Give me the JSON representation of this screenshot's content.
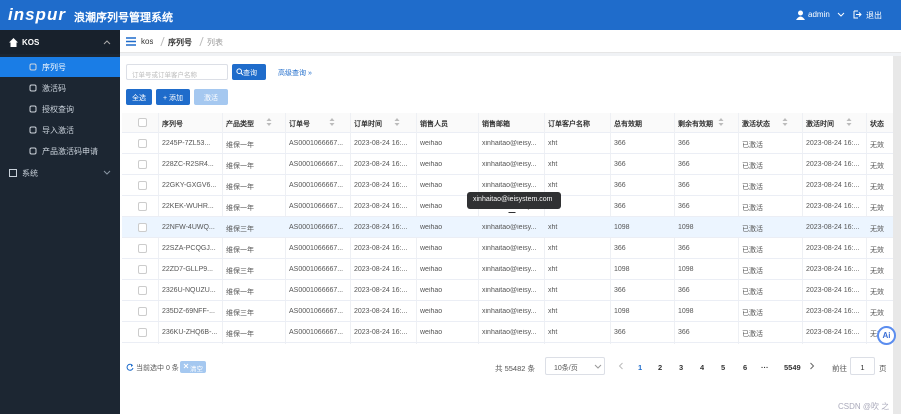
{
  "header": {
    "logo": "inspur",
    "title": "浪潮序列号管理系统",
    "user": "admin",
    "logout": "退出"
  },
  "sidebar": {
    "group": "KOS",
    "items": [
      "序列号",
      "激活码",
      "授权查询",
      "导入激活",
      "产品激活码申请"
    ],
    "system": "系统"
  },
  "breadcrumb": [
    "kos",
    "序列号",
    "列表"
  ],
  "search": {
    "placeholder": "订单号或订单客户名称",
    "button": "查询",
    "advanced": "高级查询 »"
  },
  "toolbar": [
    "全选",
    "+ 添加",
    "激活"
  ],
  "table": {
    "columns": [
      "序列号",
      "产品类型",
      "订单号",
      "订单时间",
      "销售人员",
      "销售邮箱",
      "订单客户名称",
      "总有效期",
      "剩余有效期",
      "激活状态",
      "激活时间",
      "状态"
    ],
    "rows": [
      [
        "2245P-7ZL53...",
        "维保一年",
        "AS0001066667...",
        "2023-08-24 16:...",
        "weihao",
        "xinhaitao@ieisy...",
        "xht",
        "366",
        "366",
        "已激活",
        "2023-08-24 16:...",
        "无效"
      ],
      [
        "228ZC-R2SR4...",
        "维保一年",
        "AS0001066667...",
        "2023-08-24 16:...",
        "weihao",
        "xinhaitao@ieisy...",
        "xht",
        "366",
        "366",
        "已激活",
        "2023-08-24 16:...",
        "无效"
      ],
      [
        "22GKY-GXGV6...",
        "维保一年",
        "AS0001066667...",
        "2023-08-24 16:...",
        "weihao",
        "xinhaitao@ieisy...",
        "xht",
        "366",
        "366",
        "已激活",
        "2023-08-24 16:...",
        "无效"
      ],
      [
        "22KEK-WUHR...",
        "维保一年",
        "AS0001066667...",
        "2023-08-24 16:...",
        "weihao",
        "xinhaitao@ieisy...",
        "xht",
        "366",
        "366",
        "已激活",
        "2023-08-24 16:...",
        "无效"
      ],
      [
        "22NFW-4UWQ...",
        "维保三年",
        "AS0001066667...",
        "2023-08-24 16:...",
        "weihao",
        "xinhaitao@ieisy...",
        "xht",
        "1098",
        "1098",
        "已激活",
        "2023-08-24 16:...",
        "无效"
      ],
      [
        "22SZA-PCQGJ...",
        "维保一年",
        "AS0001066667...",
        "2023-08-24 16:...",
        "weihao",
        "xinhaitao@ieisy...",
        "xht",
        "366",
        "366",
        "已激活",
        "2023-08-24 16:...",
        "无效"
      ],
      [
        "22ZD7-GLLP9...",
        "维保三年",
        "AS0001066667...",
        "2023-08-24 16:...",
        "weihao",
        "xinhaitao@ieisy...",
        "xht",
        "1098",
        "1098",
        "已激活",
        "2023-08-24 16:...",
        "无效"
      ],
      [
        "2326U-NQUZU...",
        "维保一年",
        "AS0001066667...",
        "2023-08-24 16:...",
        "weihao",
        "xinhaitao@ieisy...",
        "xht",
        "366",
        "366",
        "已激活",
        "2023-08-24 16:...",
        "无效"
      ],
      [
        "235DZ-69NFF-...",
        "维保三年",
        "AS0001066667...",
        "2023-08-24 16:...",
        "weihao",
        "xinhaitao@ieisy...",
        "xht",
        "1098",
        "1098",
        "已激活",
        "2023-08-24 16:...",
        "无效"
      ],
      [
        "236KU-ZHQ6B-...",
        "维保一年",
        "AS0001066667...",
        "2023-08-24 16:...",
        "weihao",
        "xinhaitao@ieisy...",
        "xht",
        "366",
        "366",
        "已激活",
        "2023-08-24 16:...",
        "无效"
      ]
    ]
  },
  "tooltip": "xinhaitao@ieisystem.com",
  "footer": {
    "selected": "当前选中 0 条",
    "clear": "清空",
    "total": "共 55482 条",
    "page_size": "10条/页",
    "pages": [
      "1",
      "2",
      "3",
      "4",
      "5",
      "6",
      "···",
      "5549"
    ],
    "goto": "前往",
    "goto_value": "1",
    "goto_unit": "页"
  },
  "ai_badge": "Ai",
  "watermark": "CSDN @吹 之"
}
